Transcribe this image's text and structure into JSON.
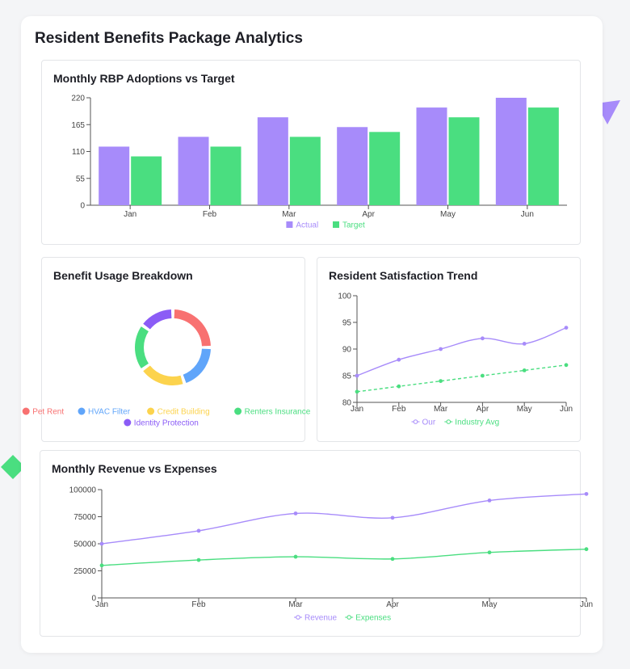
{
  "dashboard": {
    "title": "Resident Benefits Package Analytics"
  },
  "colors": {
    "purple": "#a78bfa",
    "green": "#4ade80",
    "red": "#f87171",
    "blue": "#60a5fa",
    "yellow": "#fcd34d",
    "violet": "#8b5cf6"
  },
  "chart_data": [
    {
      "id": "adoptions",
      "type": "bar",
      "title": "Monthly RBP Adoptions vs Target",
      "categories": [
        "Jan",
        "Feb",
        "Mar",
        "Apr",
        "May",
        "Jun"
      ],
      "series": [
        {
          "name": "Actual",
          "color": "#a78bfa",
          "values": [
            120,
            140,
            180,
            160,
            200,
            220
          ]
        },
        {
          "name": "Target",
          "color": "#4ade80",
          "values": [
            100,
            120,
            140,
            150,
            180,
            200
          ]
        }
      ],
      "yticks": [
        0,
        55,
        110,
        165,
        220
      ],
      "ylim": [
        0,
        220
      ],
      "grid": false,
      "legend": "bottom"
    },
    {
      "id": "usage",
      "type": "pie",
      "title": "Benefit Usage Breakdown",
      "labels": [
        "Pet Rent",
        "HVAC Filter",
        "Credit Building",
        "Renters Insurance",
        "Identity Protection"
      ],
      "values": [
        25,
        20,
        20,
        20,
        15
      ],
      "colors": [
        "#f87171",
        "#60a5fa",
        "#fcd34d",
        "#4ade80",
        "#8b5cf6"
      ],
      "legend": "bottom"
    },
    {
      "id": "satisfaction",
      "type": "line",
      "title": "Resident Satisfaction Trend",
      "categories": [
        "Jan",
        "Feb",
        "Mar",
        "Apr",
        "May",
        "Jun"
      ],
      "series": [
        {
          "name": "Our",
          "color": "#a78bfa",
          "values": [
            85,
            88,
            90,
            92,
            91,
            94
          ]
        },
        {
          "name": "Industry Avg",
          "color": "#4ade80",
          "values": [
            82,
            83,
            84,
            85,
            86,
            87
          ]
        }
      ],
      "yticks": [
        80,
        85,
        90,
        95,
        100
      ],
      "ylim": [
        80,
        100
      ],
      "grid": false,
      "legend": "bottom"
    },
    {
      "id": "revenue",
      "type": "line",
      "title": "Monthly Revenue vs Expenses",
      "categories": [
        "Jan",
        "Feb",
        "Mar",
        "Apr",
        "May",
        "Jun"
      ],
      "series": [
        {
          "name": "Revenue",
          "color": "#a78bfa",
          "values": [
            50000,
            62000,
            78000,
            74000,
            90000,
            96000
          ]
        },
        {
          "name": "Expenses",
          "color": "#4ade80",
          "values": [
            30000,
            35000,
            38000,
            36000,
            42000,
            45000
          ]
        }
      ],
      "yticks": [
        0,
        25000,
        50000,
        75000,
        100000
      ],
      "ylim": [
        0,
        100000
      ],
      "grid": false,
      "legend": "bottom"
    }
  ]
}
